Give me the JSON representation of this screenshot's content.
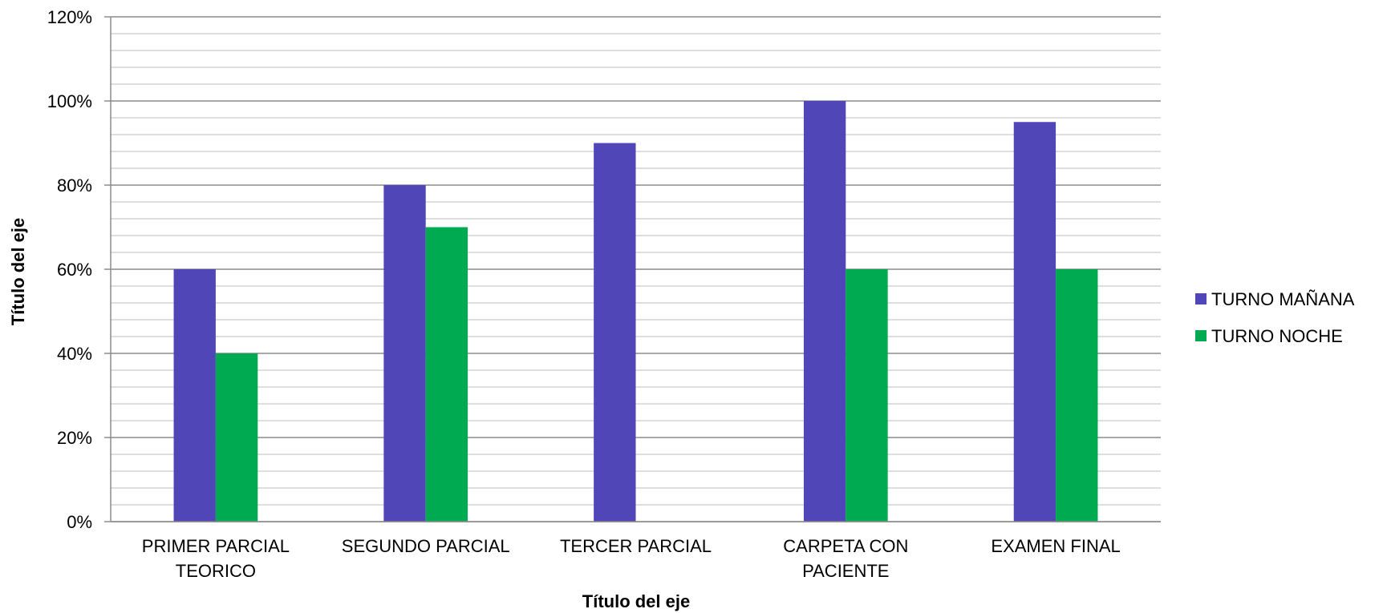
{
  "chart_data": {
    "type": "bar",
    "categories": [
      [
        "PRIMER PARCIAL",
        "TEORICO"
      ],
      [
        "SEGUNDO PARCIAL"
      ],
      [
        "TERCER PARCIAL"
      ],
      [
        "CARPETA CON",
        "PACIENTE"
      ],
      [
        "EXAMEN FINAL"
      ]
    ],
    "series": [
      {
        "name": "TURNO MAÑANA",
        "color": "#5046B8",
        "values": [
          60,
          80,
          90,
          100,
          95
        ]
      },
      {
        "name": "TURNO NOCHE",
        "color": "#00AA50",
        "values": [
          40,
          70,
          0,
          60,
          60
        ]
      }
    ],
    "xlabel": "Título del eje",
    "ylabel": "Título del eje",
    "ylim": [
      0,
      120
    ],
    "yticks": [
      "0%",
      "20%",
      "40%",
      "60%",
      "80%",
      "100%",
      "120%"
    ],
    "value_unit": "%",
    "grid": true,
    "minor_grid": true,
    "legend_position": "right"
  }
}
